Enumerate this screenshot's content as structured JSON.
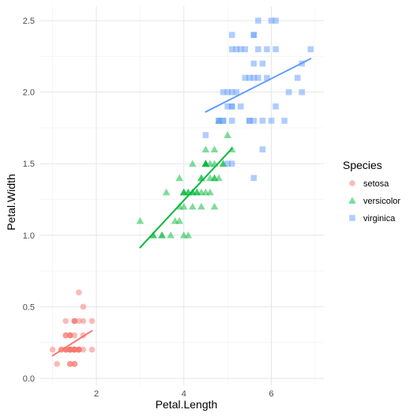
{
  "chart_data": {
    "type": "scatter",
    "xlabel": "Petal.Length",
    "ylabel": "Petal.Width",
    "xlim": [
      0.7,
      7.2
    ],
    "ylim": [
      -0.05,
      2.6
    ],
    "x_ticks": [
      2,
      4,
      6
    ],
    "x_tick_labels": [
      "2",
      "4",
      "6"
    ],
    "y_ticks": [
      0.0,
      0.5,
      1.0,
      1.5,
      2.0,
      2.5
    ],
    "y_tick_labels": [
      "0.0",
      "0.5",
      "1.0",
      "1.5",
      "2.0",
      "2.5"
    ],
    "grid": true,
    "legend": {
      "title": "Species",
      "placement": "right"
    },
    "series": [
      {
        "name": "setosa",
        "marker": "circle",
        "color": "#F8766D",
        "points": [
          [
            1.4,
            0.2
          ],
          [
            1.4,
            0.2
          ],
          [
            1.3,
            0.2
          ],
          [
            1.5,
            0.2
          ],
          [
            1.4,
            0.2
          ],
          [
            1.7,
            0.4
          ],
          [
            1.4,
            0.3
          ],
          [
            1.5,
            0.2
          ],
          [
            1.4,
            0.2
          ],
          [
            1.5,
            0.1
          ],
          [
            1.5,
            0.2
          ],
          [
            1.6,
            0.2
          ],
          [
            1.4,
            0.1
          ],
          [
            1.1,
            0.1
          ],
          [
            1.2,
            0.2
          ],
          [
            1.5,
            0.4
          ],
          [
            1.3,
            0.4
          ],
          [
            1.4,
            0.3
          ],
          [
            1.7,
            0.3
          ],
          [
            1.5,
            0.3
          ],
          [
            1.7,
            0.2
          ],
          [
            1.5,
            0.4
          ],
          [
            1.0,
            0.2
          ],
          [
            1.7,
            0.5
          ],
          [
            1.9,
            0.2
          ],
          [
            1.6,
            0.2
          ],
          [
            1.6,
            0.4
          ],
          [
            1.5,
            0.2
          ],
          [
            1.4,
            0.2
          ],
          [
            1.6,
            0.2
          ],
          [
            1.6,
            0.2
          ],
          [
            1.5,
            0.4
          ],
          [
            1.5,
            0.1
          ],
          [
            1.4,
            0.2
          ],
          [
            1.5,
            0.2
          ],
          [
            1.2,
            0.2
          ],
          [
            1.3,
            0.2
          ],
          [
            1.4,
            0.1
          ],
          [
            1.3,
            0.2
          ],
          [
            1.5,
            0.2
          ],
          [
            1.3,
            0.3
          ],
          [
            1.3,
            0.3
          ],
          [
            1.3,
            0.2
          ],
          [
            1.6,
            0.6
          ],
          [
            1.9,
            0.4
          ],
          [
            1.4,
            0.3
          ],
          [
            1.6,
            0.2
          ],
          [
            1.4,
            0.2
          ],
          [
            1.5,
            0.2
          ],
          [
            1.4,
            0.2
          ]
        ],
        "fit": {
          "x": [
            1.0,
            1.9
          ],
          "y": [
            0.158,
            0.332
          ]
        }
      },
      {
        "name": "versicolor",
        "marker": "triangle",
        "color": "#00BA38",
        "points": [
          [
            4.7,
            1.4
          ],
          [
            4.5,
            1.5
          ],
          [
            4.9,
            1.5
          ],
          [
            4.0,
            1.3
          ],
          [
            4.6,
            1.5
          ],
          [
            4.5,
            1.3
          ],
          [
            4.7,
            1.6
          ],
          [
            3.3,
            1.0
          ],
          [
            4.6,
            1.3
          ],
          [
            3.9,
            1.4
          ],
          [
            3.5,
            1.0
          ],
          [
            4.2,
            1.5
          ],
          [
            4.0,
            1.0
          ],
          [
            4.7,
            1.4
          ],
          [
            3.6,
            1.3
          ],
          [
            4.4,
            1.4
          ],
          [
            4.5,
            1.5
          ],
          [
            4.1,
            1.0
          ],
          [
            4.5,
            1.5
          ],
          [
            3.9,
            1.1
          ],
          [
            4.8,
            1.8
          ],
          [
            4.0,
            1.3
          ],
          [
            4.9,
            1.5
          ],
          [
            4.7,
            1.2
          ],
          [
            4.3,
            1.3
          ],
          [
            4.4,
            1.4
          ],
          [
            4.8,
            1.4
          ],
          [
            5.0,
            1.7
          ],
          [
            4.5,
            1.5
          ],
          [
            3.5,
            1.0
          ],
          [
            3.8,
            1.1
          ],
          [
            3.7,
            1.0
          ],
          [
            3.9,
            1.2
          ],
          [
            5.1,
            1.6
          ],
          [
            4.5,
            1.5
          ],
          [
            4.5,
            1.6
          ],
          [
            4.7,
            1.5
          ],
          [
            4.4,
            1.3
          ],
          [
            4.1,
            1.3
          ],
          [
            4.0,
            1.3
          ],
          [
            4.4,
            1.2
          ],
          [
            4.6,
            1.4
          ],
          [
            4.0,
            1.2
          ],
          [
            3.3,
            1.0
          ],
          [
            4.2,
            1.3
          ],
          [
            4.2,
            1.2
          ],
          [
            4.2,
            1.3
          ],
          [
            4.3,
            1.3
          ],
          [
            3.0,
            1.1
          ],
          [
            4.1,
            1.3
          ]
        ],
        "fit": {
          "x": [
            3.0,
            5.1
          ],
          "y": [
            0.914,
            1.606
          ]
        }
      },
      {
        "name": "virginica",
        "marker": "square",
        "color": "#619CFF",
        "points": [
          [
            6.0,
            2.5
          ],
          [
            5.1,
            1.9
          ],
          [
            5.9,
            2.1
          ],
          [
            5.6,
            1.8
          ],
          [
            5.8,
            2.2
          ],
          [
            6.6,
            2.1
          ],
          [
            4.5,
            1.7
          ],
          [
            6.3,
            1.8
          ],
          [
            5.8,
            1.8
          ],
          [
            6.1,
            2.5
          ],
          [
            5.1,
            2.0
          ],
          [
            5.3,
            1.9
          ],
          [
            5.5,
            2.1
          ],
          [
            5.0,
            2.0
          ],
          [
            5.1,
            2.4
          ],
          [
            5.3,
            2.3
          ],
          [
            5.5,
            1.8
          ],
          [
            6.7,
            2.2
          ],
          [
            6.9,
            2.3
          ],
          [
            5.0,
            1.5
          ],
          [
            5.7,
            2.3
          ],
          [
            4.9,
            2.0
          ],
          [
            6.7,
            2.0
          ],
          [
            4.9,
            1.8
          ],
          [
            5.7,
            2.1
          ],
          [
            6.0,
            1.8
          ],
          [
            4.8,
            1.8
          ],
          [
            4.9,
            1.8
          ],
          [
            5.6,
            2.1
          ],
          [
            5.8,
            1.6
          ],
          [
            6.1,
            1.9
          ],
          [
            6.4,
            2.0
          ],
          [
            5.6,
            2.2
          ],
          [
            5.1,
            1.5
          ],
          [
            5.6,
            1.4
          ],
          [
            6.1,
            2.3
          ],
          [
            5.6,
            2.4
          ],
          [
            5.5,
            1.8
          ],
          [
            4.8,
            1.8
          ],
          [
            5.4,
            2.1
          ],
          [
            5.6,
            2.4
          ],
          [
            5.1,
            2.3
          ],
          [
            5.1,
            1.9
          ],
          [
            5.9,
            2.3
          ],
          [
            5.7,
            2.5
          ],
          [
            5.2,
            2.3
          ],
          [
            5.0,
            1.9
          ],
          [
            5.2,
            2.0
          ],
          [
            5.4,
            2.3
          ],
          [
            5.1,
            1.8
          ]
        ],
        "fit": {
          "x": [
            4.5,
            6.9
          ],
          "y": [
            1.862,
            2.234
          ]
        }
      }
    ]
  }
}
